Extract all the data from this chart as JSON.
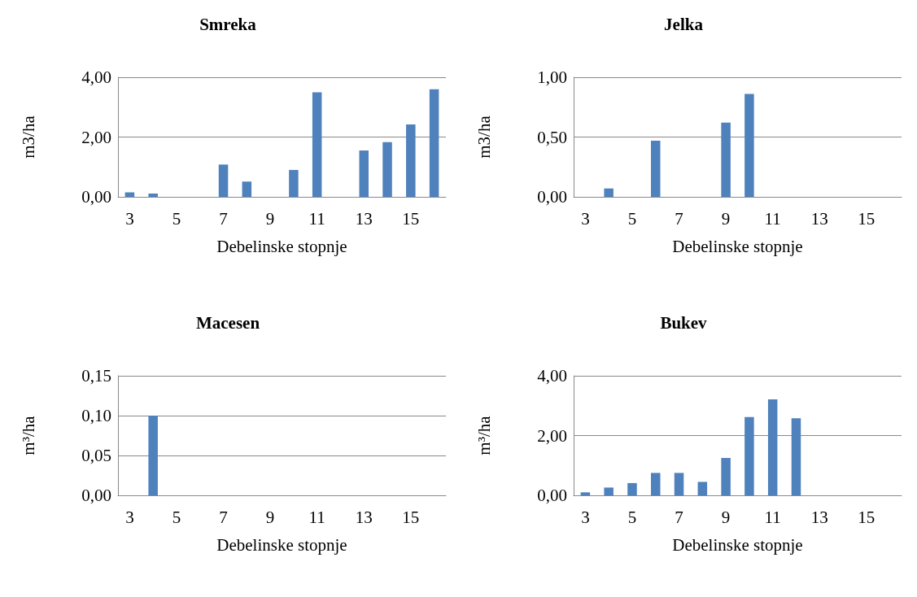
{
  "chart_data": [
    {
      "type": "bar",
      "title": "Smreka",
      "xlabel": "Debelinske stopnje",
      "ylabel": "m3/ha",
      "categories": [
        "3",
        null,
        "5",
        null,
        "7",
        null,
        "9",
        null,
        "11",
        null,
        "13",
        null,
        "15",
        null
      ],
      "color": "#4f81bd",
      "values": [
        0.15,
        0.11,
        null,
        null,
        1.08,
        0.51,
        null,
        0.9,
        3.5,
        null,
        1.55,
        1.83,
        2.42,
        3.6
      ],
      "ylim": [
        0,
        4
      ],
      "yticks": [
        {
          "value": 0,
          "label": "0,00"
        },
        {
          "value": 2,
          "label": "2,00"
        },
        {
          "value": 4,
          "label": "4,00"
        }
      ],
      "grid": "y"
    },
    {
      "type": "bar",
      "title": "Jelka",
      "xlabel": "Debelinske stopnje",
      "ylabel": "m3/ha",
      "categories": [
        "3",
        null,
        "5",
        null,
        "7",
        null,
        "9",
        null,
        "11",
        null,
        "13",
        null,
        "15",
        null
      ],
      "color": "#4f81bd",
      "values": [
        null,
        0.07,
        null,
        0.47,
        null,
        null,
        0.62,
        0.86,
        null,
        null,
        null,
        null,
        null,
        null
      ],
      "ylim": [
        0,
        1
      ],
      "yticks": [
        {
          "value": 0,
          "label": "0,00"
        },
        {
          "value": 0.5,
          "label": "0,50"
        },
        {
          "value": 1,
          "label": "1,00"
        }
      ],
      "grid": "y"
    },
    {
      "type": "bar",
      "title": "Macesen",
      "xlabel": "Debelinske stopnje",
      "ylabel": "m³/ha",
      "categories": [
        "3",
        null,
        "5",
        null,
        "7",
        null,
        "9",
        null,
        "11",
        null,
        "13",
        null,
        "15",
        null
      ],
      "color": "#4f81bd",
      "values": [
        null,
        0.1,
        null,
        null,
        null,
        null,
        null,
        null,
        null,
        null,
        null,
        null,
        null,
        null
      ],
      "ylim": [
        0,
        0.15
      ],
      "yticks": [
        {
          "value": 0,
          "label": "0,00"
        },
        {
          "value": 0.05,
          "label": "0,05"
        },
        {
          "value": 0.1,
          "label": "0,10"
        },
        {
          "value": 0.15,
          "label": "0,15"
        }
      ],
      "grid": "y"
    },
    {
      "type": "bar",
      "title": "Bukev",
      "xlabel": "Debelinske stopnje",
      "ylabel": "m³/ha",
      "categories": [
        "3",
        null,
        "5",
        null,
        "7",
        null,
        "9",
        null,
        "11",
        null,
        "13",
        null,
        "15",
        null
      ],
      "color": "#4f81bd",
      "values": [
        0.1,
        0.26,
        0.41,
        0.75,
        0.75,
        0.45,
        1.25,
        2.62,
        3.21,
        2.58,
        null,
        null,
        null,
        null
      ],
      "ylim": [
        0,
        4
      ],
      "yticks": [
        {
          "value": 0,
          "label": "0,00"
        },
        {
          "value": 2,
          "label": "2,00"
        },
        {
          "value": 4,
          "label": "4,00"
        }
      ],
      "grid": "y"
    }
  ]
}
